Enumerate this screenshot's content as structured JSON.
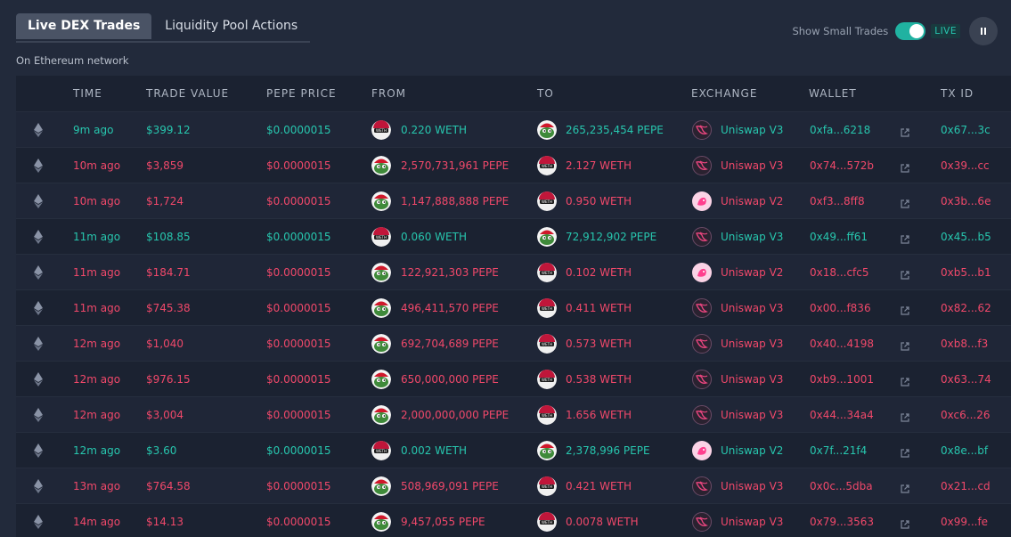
{
  "tabs": [
    {
      "label": "Live DEX Trades",
      "active": true
    },
    {
      "label": "Liquidity Pool Actions",
      "active": false
    }
  ],
  "subtitle": "On Ethereum network",
  "controls": {
    "show_small_trades_label": "Show Small Trades",
    "show_small_trades_on": true,
    "live_label": "LIVE",
    "pause_icon": "pause-icon"
  },
  "colors": {
    "buy": "#27c6ae",
    "sell": "#f0486a",
    "accent": "#20b2a1"
  },
  "table": {
    "columns": [
      "TIME",
      "TRADE VALUE",
      "PEPE PRICE",
      "FROM",
      "TO",
      "EXCHANGE",
      "WALLET",
      "TX ID"
    ],
    "rows": [
      {
        "side": "buy",
        "time": "9m ago",
        "value": "$399.12",
        "price": "$0.0000015",
        "from_token": "weth",
        "from": "0.220 WETH",
        "to_token": "pepe",
        "to": "265,235,454 PEPE",
        "exchange_ver": "v3",
        "exchange": "Uniswap V3",
        "wallet": "0xfa...6218",
        "tx": "0x67...3c"
      },
      {
        "side": "sell",
        "time": "10m ago",
        "value": "$3,859",
        "price": "$0.0000015",
        "from_token": "pepe",
        "from": "2,570,731,961 PEPE",
        "to_token": "weth",
        "to": "2.127 WETH",
        "exchange_ver": "v3",
        "exchange": "Uniswap V3",
        "wallet": "0x74...572b",
        "tx": "0x39...cc"
      },
      {
        "side": "sell",
        "time": "10m ago",
        "value": "$1,724",
        "price": "$0.0000015",
        "from_token": "pepe",
        "from": "1,147,888,888 PEPE",
        "to_token": "weth",
        "to": "0.950 WETH",
        "exchange_ver": "v2",
        "exchange": "Uniswap V2",
        "wallet": "0xf3...8ff8",
        "tx": "0x3b...6e"
      },
      {
        "side": "buy",
        "time": "11m ago",
        "value": "$108.85",
        "price": "$0.0000015",
        "from_token": "weth",
        "from": "0.060 WETH",
        "to_token": "pepe",
        "to": "72,912,902 PEPE",
        "exchange_ver": "v3",
        "exchange": "Uniswap V3",
        "wallet": "0x49...ff61",
        "tx": "0x45...b5"
      },
      {
        "side": "sell",
        "time": "11m ago",
        "value": "$184.71",
        "price": "$0.0000015",
        "from_token": "pepe",
        "from": "122,921,303 PEPE",
        "to_token": "weth",
        "to": "0.102 WETH",
        "exchange_ver": "v2",
        "exchange": "Uniswap V2",
        "wallet": "0x18...cfc5",
        "tx": "0xb5...b1"
      },
      {
        "side": "sell",
        "time": "11m ago",
        "value": "$745.38",
        "price": "$0.0000015",
        "from_token": "pepe",
        "from": "496,411,570 PEPE",
        "to_token": "weth",
        "to": "0.411 WETH",
        "exchange_ver": "v3",
        "exchange": "Uniswap V3",
        "wallet": "0x00...f836",
        "tx": "0x82...62"
      },
      {
        "side": "sell",
        "time": "12m ago",
        "value": "$1,040",
        "price": "$0.0000015",
        "from_token": "pepe",
        "from": "692,704,689 PEPE",
        "to_token": "weth",
        "to": "0.573 WETH",
        "exchange_ver": "v3",
        "exchange": "Uniswap V3",
        "wallet": "0x40...4198",
        "tx": "0xb8...f3"
      },
      {
        "side": "sell",
        "time": "12m ago",
        "value": "$976.15",
        "price": "$0.0000015",
        "from_token": "pepe",
        "from": "650,000,000 PEPE",
        "to_token": "weth",
        "to": "0.538 WETH",
        "exchange_ver": "v3",
        "exchange": "Uniswap V3",
        "wallet": "0xb9...1001",
        "tx": "0x63...74"
      },
      {
        "side": "sell",
        "time": "12m ago",
        "value": "$3,004",
        "price": "$0.0000015",
        "from_token": "pepe",
        "from": "2,000,000,000 PEPE",
        "to_token": "weth",
        "to": "1.656 WETH",
        "exchange_ver": "v3",
        "exchange": "Uniswap V3",
        "wallet": "0x44...34a4",
        "tx": "0xc6...26"
      },
      {
        "side": "buy",
        "time": "12m ago",
        "value": "$3.60",
        "price": "$0.0000015",
        "from_token": "weth",
        "from": "0.002 WETH",
        "to_token": "pepe",
        "to": "2,378,996 PEPE",
        "exchange_ver": "v2",
        "exchange": "Uniswap V2",
        "wallet": "0x7f...21f4",
        "tx": "0x8e...bf"
      },
      {
        "side": "sell",
        "time": "13m ago",
        "value": "$764.58",
        "price": "$0.0000015",
        "from_token": "pepe",
        "from": "508,969,091 PEPE",
        "to_token": "weth",
        "to": "0.421 WETH",
        "exchange_ver": "v3",
        "exchange": "Uniswap V3",
        "wallet": "0x0c...5dba",
        "tx": "0x21...cd"
      },
      {
        "side": "sell",
        "time": "14m ago",
        "value": "$14.13",
        "price": "$0.0000015",
        "from_token": "pepe",
        "from": "9,457,055 PEPE",
        "to_token": "weth",
        "to": "0.0078 WETH",
        "exchange_ver": "v3",
        "exchange": "Uniswap V3",
        "wallet": "0x79...3563",
        "tx": "0x99...fe"
      }
    ]
  }
}
